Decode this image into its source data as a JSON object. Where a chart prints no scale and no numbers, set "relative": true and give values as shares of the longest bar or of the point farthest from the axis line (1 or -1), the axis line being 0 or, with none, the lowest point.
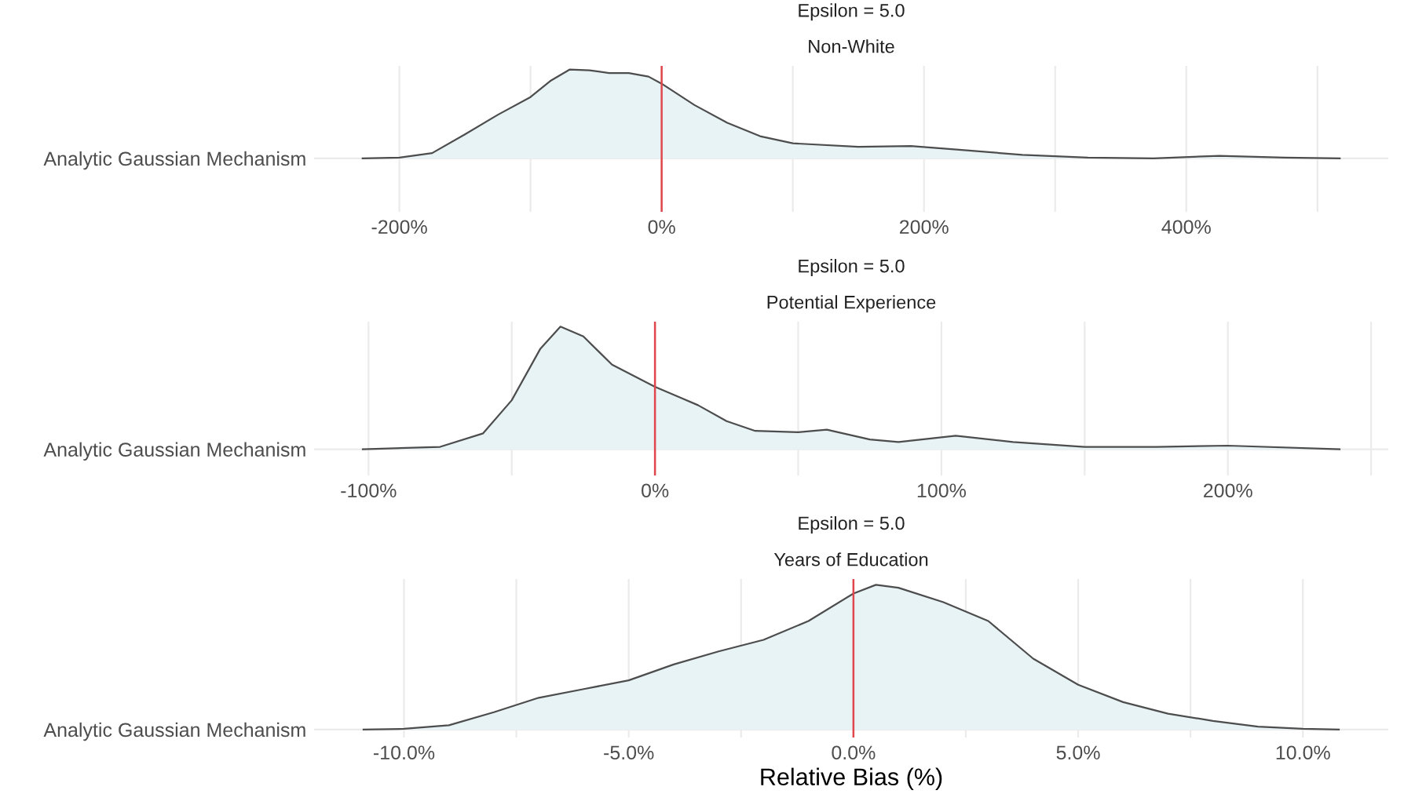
{
  "chart_data": [
    {
      "type": "area",
      "title": "Epsilon = 5.0",
      "subtitle": "Non-White",
      "ylabel": "Analytic Gaussian Mechanism",
      "relative": true,
      "grid": "x",
      "x": [
        -228,
        -200,
        -175,
        -150,
        -125,
        -100,
        -85,
        -70,
        -55,
        -40,
        -25,
        -10,
        0,
        25,
        50,
        75,
        100,
        150,
        190,
        225,
        275,
        325,
        375,
        425,
        475,
        517
      ],
      "series": [
        {
          "color": "#e8f3f6",
          "values": [
            0,
            0.01,
            0.06,
            0.27,
            0.49,
            0.69,
            0.87,
            1.0,
            0.99,
            0.96,
            0.96,
            0.92,
            0.84,
            0.6,
            0.4,
            0.25,
            0.17,
            0.13,
            0.14,
            0.1,
            0.04,
            0.01,
            0.0,
            0.03,
            0.01,
            0
          ]
        }
      ],
      "xlim": [
        -265,
        554
      ],
      "xticks": [
        {
          "value": -200,
          "label": "-200%"
        },
        {
          "value": -100,
          "label": null
        },
        {
          "value": 0,
          "label": "0%"
        },
        {
          "value": 100,
          "label": null
        },
        {
          "value": 200,
          "label": "200%"
        },
        {
          "value": 300,
          "label": null
        },
        {
          "value": 400,
          "label": "400%"
        },
        {
          "value": 500,
          "label": null
        }
      ],
      "ref_lines": [
        {
          "axis": "x",
          "value": 0,
          "color": "#e0464b"
        }
      ]
    },
    {
      "type": "area",
      "title": "Epsilon = 5.0",
      "subtitle": "Potential Experience",
      "ylabel": "Analytic Gaussian Mechanism",
      "relative": true,
      "grid": "x",
      "x": [
        -102,
        -75,
        -60,
        -50,
        -40,
        -33,
        -25,
        -15,
        0,
        15,
        25,
        35,
        50,
        60,
        75,
        85,
        105,
        125,
        150,
        175,
        200,
        239
      ],
      "series": [
        {
          "color": "#e8f3f6",
          "values": [
            0,
            0.02,
            0.13,
            0.4,
            0.82,
            1.0,
            0.92,
            0.69,
            0.51,
            0.36,
            0.23,
            0.15,
            0.14,
            0.16,
            0.08,
            0.06,
            0.11,
            0.06,
            0.02,
            0.02,
            0.03,
            0
          ]
        }
      ],
      "xlim": [
        -119,
        256
      ],
      "xticks": [
        {
          "value": -100,
          "label": "-100%"
        },
        {
          "value": -50,
          "label": null
        },
        {
          "value": 0,
          "label": "0%"
        },
        {
          "value": 50,
          "label": null
        },
        {
          "value": 100,
          "label": "100%"
        },
        {
          "value": 150,
          "label": null
        },
        {
          "value": 200,
          "label": "200%"
        },
        {
          "value": 250,
          "label": null
        }
      ],
      "ref_lines": [
        {
          "axis": "x",
          "value": 0,
          "color": "#e0464b"
        }
      ]
    },
    {
      "type": "area",
      "title": "Epsilon = 5.0",
      "subtitle": "Years of Education",
      "ylabel": "Analytic Gaussian Mechanism",
      "xlabel": "Relative Bias (%)",
      "relative": true,
      "grid": "x",
      "x": [
        -10.9,
        -10,
        -9,
        -8,
        -7,
        -6,
        -5,
        -4,
        -3,
        -2,
        -1,
        0,
        0.5,
        1,
        2,
        3,
        4,
        5,
        6,
        7,
        8,
        9,
        10,
        10.8
      ],
      "series": [
        {
          "color": "#e8f3f6",
          "values": [
            0,
            0.005,
            0.03,
            0.12,
            0.22,
            0.28,
            0.34,
            0.45,
            0.54,
            0.62,
            0.75,
            0.94,
            1.0,
            0.98,
            0.88,
            0.75,
            0.49,
            0.31,
            0.19,
            0.11,
            0.06,
            0.02,
            0.005,
            0
          ]
        }
      ],
      "xlim": [
        -12,
        11.9
      ],
      "xticks": [
        {
          "value": -10,
          "label": "-10.0%"
        },
        {
          "value": -7.5,
          "label": null
        },
        {
          "value": -5,
          "label": "-5.0%"
        },
        {
          "value": -2.5,
          "label": null
        },
        {
          "value": 0,
          "label": "0.0%"
        },
        {
          "value": 2.5,
          "label": null
        },
        {
          "value": 5,
          "label": "5.0%"
        },
        {
          "value": 7.5,
          "label": null
        },
        {
          "value": 10,
          "label": "10.0%"
        }
      ],
      "ref_lines": [
        {
          "axis": "x",
          "value": 0,
          "color": "#e0464b"
        }
      ]
    }
  ]
}
